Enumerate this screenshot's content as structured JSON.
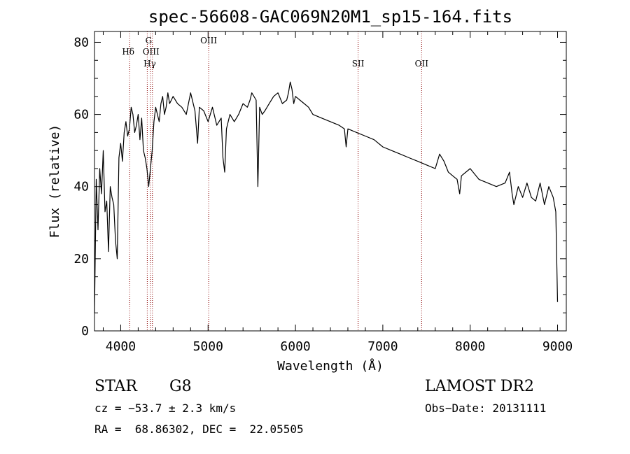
{
  "chart_data": {
    "type": "line",
    "title": "spec-56608-GAC069N20M1_sp15-164.fits",
    "xlabel": "Wavelength (Å)",
    "ylabel": "Flux (relative)",
    "xlim": [
      3700,
      9100
    ],
    "ylim": [
      0,
      83
    ],
    "x_ticks": [
      4000,
      5000,
      6000,
      7000,
      8000,
      9000
    ],
    "y_ticks": [
      0,
      20,
      40,
      60,
      80
    ],
    "line_color": "#000000",
    "marker_color": "#8b0000",
    "series": [
      {
        "x": [
          3700,
          3720,
          3740,
          3760,
          3780,
          3800,
          3820,
          3840,
          3860,
          3880,
          3900,
          3920,
          3940,
          3960,
          3980,
          4000,
          4020,
          4040,
          4060,
          4080,
          4100,
          4120,
          4140,
          4160,
          4180,
          4200,
          4220,
          4240,
          4260,
          4280,
          4300,
          4320,
          4340,
          4360,
          4380,
          4400,
          4420,
          4440,
          4460,
          4480,
          4500,
          4520,
          4540,
          4560,
          4580,
          4600,
          4650,
          4700,
          4750,
          4800,
          4850,
          4880,
          4900,
          4950,
          5000,
          5050,
          5100,
          5150,
          5170,
          5190,
          5210,
          5250,
          5300,
          5350,
          5400,
          5450,
          5480,
          5500,
          5550,
          5570,
          5590,
          5620,
          5650,
          5700,
          5750,
          5800,
          5850,
          5900,
          5920,
          5940,
          5960,
          5980,
          6000,
          6050,
          6100,
          6150,
          6200,
          6300,
          6400,
          6500,
          6560,
          6580,
          6600,
          6700,
          6800,
          6900,
          7000,
          7100,
          7200,
          7300,
          7400,
          7500,
          7600,
          7650,
          7700,
          7750,
          7800,
          7850,
          7880,
          7900,
          7950,
          8000,
          8100,
          8200,
          8300,
          8400,
          8450,
          8480,
          8500,
          8550,
          8600,
          8650,
          8700,
          8750,
          8800,
          8850,
          8900,
          8950,
          8980,
          9000
        ],
        "y": [
          5,
          42,
          28,
          45,
          38,
          50,
          33,
          36,
          22,
          40,
          37,
          35,
          25,
          20,
          48,
          52,
          47,
          55,
          58,
          54,
          56,
          62,
          60,
          55,
          57,
          60,
          53,
          59,
          50,
          48,
          45,
          40,
          45,
          50,
          58,
          62,
          60,
          58,
          63,
          65,
          60,
          62,
          66,
          63,
          64,
          65,
          63,
          62,
          60,
          66,
          61,
          52,
          62,
          61,
          58,
          62,
          57,
          59,
          48,
          44,
          56,
          60,
          58,
          60,
          63,
          62,
          64,
          66,
          64,
          40,
          62,
          60,
          61,
          63,
          65,
          66,
          63,
          64,
          66,
          69,
          67,
          63,
          65,
          64,
          63,
          62,
          60,
          59,
          58,
          57,
          56,
          51,
          56,
          55,
          54,
          53,
          51,
          50,
          49,
          48,
          47,
          46,
          45,
          49,
          47,
          44,
          43,
          42,
          38,
          43,
          44,
          45,
          42,
          41,
          40,
          41,
          44,
          38,
          35,
          40,
          37,
          41,
          37,
          36,
          41,
          35,
          40,
          37,
          33,
          8
        ]
      }
    ],
    "line_markers": [
      {
        "x": 4102,
        "label": "Hδ"
      },
      {
        "x": 4304,
        "label": "G"
      },
      {
        "x": 4341,
        "label": "Hγ"
      },
      {
        "x": 4363,
        "label": "OIII"
      },
      {
        "x": 5007,
        "label": "OIII"
      },
      {
        "x": 6717,
        "label": "SII"
      },
      {
        "x": 7444,
        "label": "OII"
      }
    ]
  },
  "info": {
    "class_label": "STAR",
    "subclass": "G8",
    "survey": "LAMOST DR2",
    "cz": "cz = −53.7 ± 2.3 km/s",
    "obs_date": "Obs−Date: 20131111",
    "coords": "RA =  68.86302, DEC =  22.05505"
  }
}
